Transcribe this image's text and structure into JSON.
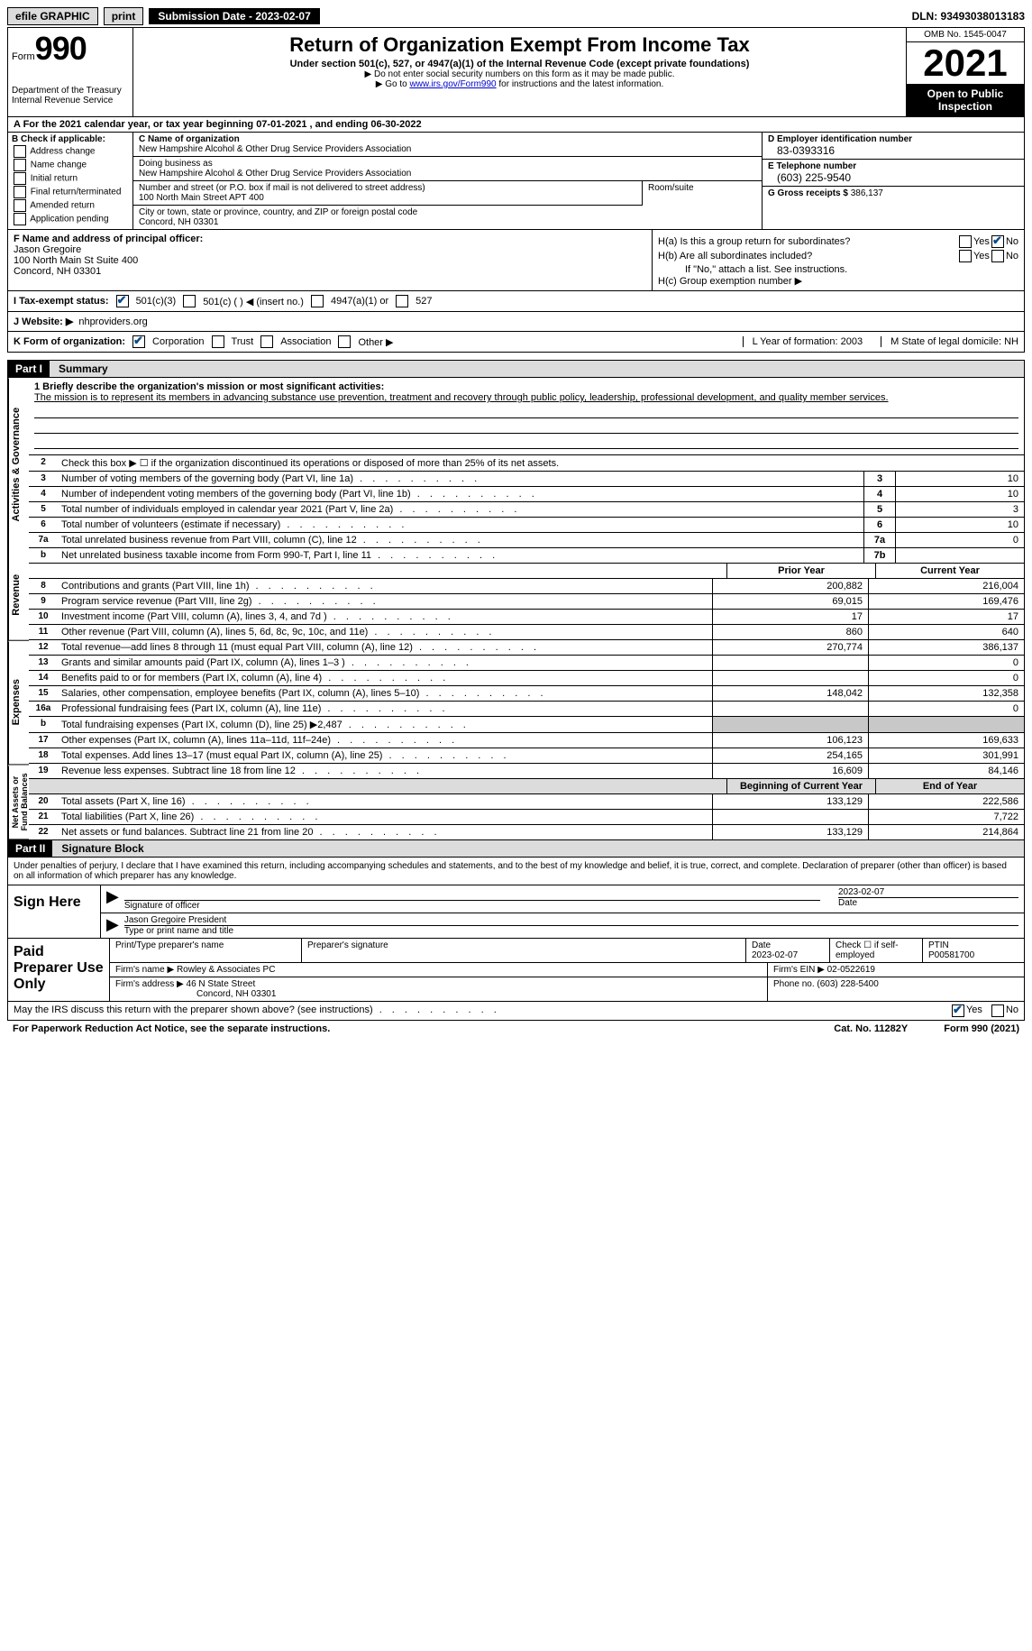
{
  "topbar": {
    "efile": "efile GRAPHIC",
    "print": "print",
    "submission": "Submission Date - 2023-02-07",
    "dln": "DLN: 93493038013183"
  },
  "header": {
    "form_label": "Form",
    "form_number": "990",
    "title": "Return of Organization Exempt From Income Tax",
    "subtitle": "Under section 501(c), 527, or 4947(a)(1) of the Internal Revenue Code (except private foundations)",
    "note1": "▶ Do not enter social security numbers on this form as it may be made public.",
    "note2_pre": "▶ Go to ",
    "note2_link": "www.irs.gov/Form990",
    "note2_post": " for instructions and the latest information.",
    "dept": "Department of the Treasury\nInternal Revenue Service",
    "omb": "OMB No. 1545-0047",
    "year": "2021",
    "open": "Open to Public Inspection"
  },
  "row_a": "A For the 2021 calendar year, or tax year beginning 07-01-2021    , and ending 06-30-2022",
  "section_b": {
    "label": "B Check if applicable:",
    "items": [
      "Address change",
      "Name change",
      "Initial return",
      "Final return/terminated",
      "Amended return",
      "Application pending"
    ]
  },
  "section_c": {
    "name_label": "C Name of organization",
    "name": "New Hampshire Alcohol & Other Drug Service Providers Association",
    "dba_label": "Doing business as",
    "dba": "New Hampshire Alcohol & Other Drug Service Providers Association",
    "street_label": "Number and street (or P.O. box if mail is not delivered to street address)",
    "street": "100 North Main Street APT 400",
    "room_label": "Room/suite",
    "city_label": "City or town, state or province, country, and ZIP or foreign postal code",
    "city": "Concord, NH  03301"
  },
  "section_d": {
    "ein_label": "D Employer identification number",
    "ein": "83-0393316",
    "phone_label": "E Telephone number",
    "phone": "(603) 225-9540",
    "gross_label": "G Gross receipts $",
    "gross": "386,137"
  },
  "section_f": {
    "label": "F  Name and address of principal officer:",
    "name": "Jason Gregoire",
    "addr1": "100 North Main St Suite 400",
    "addr2": "Concord, NH  03301"
  },
  "section_h": {
    "ha_label": "H(a)  Is this a group return for subordinates?",
    "hb_label": "H(b)  Are all subordinates included?",
    "hb_note": "If \"No,\" attach a list. See instructions.",
    "hc_label": "H(c)  Group exemption number ▶"
  },
  "row_i": {
    "label": "I   Tax-exempt status:",
    "opt1": "501(c)(3)",
    "opt2": "501(c) (  ) ◀ (insert no.)",
    "opt3": "4947(a)(1) or",
    "opt4": "527"
  },
  "row_j": {
    "label": "J   Website: ▶",
    "value": "nhproviders.org"
  },
  "row_k": {
    "label": "K Form of organization:",
    "opt1": "Corporation",
    "opt2": "Trust",
    "opt3": "Association",
    "opt4": "Other ▶",
    "year_label": "L Year of formation:",
    "year": "2003",
    "state_label": "M State of legal domicile:",
    "state": "NH"
  },
  "part1": {
    "header": "Part I",
    "title": "Summary",
    "mission_label": "1   Briefly describe the organization's mission or most significant activities:",
    "mission": "The mission is to represent its members in advancing substance use prevention, treatment and recovery through public policy, leadership, professional development, and quality member services.",
    "line2": "Check this box ▶ ☐  if the organization discontinued its operations or disposed of more than 25% of its net assets.",
    "vert_ag": "Activities & Governance",
    "vert_rev": "Revenue",
    "vert_exp": "Expenses",
    "vert_na": "Net Assets or Fund Balances",
    "lines_single": [
      {
        "n": "3",
        "label": "Number of voting members of the governing body (Part VI, line 1a)",
        "box": "3",
        "val": "10"
      },
      {
        "n": "4",
        "label": "Number of independent voting members of the governing body (Part VI, line 1b)",
        "box": "4",
        "val": "10"
      },
      {
        "n": "5",
        "label": "Total number of individuals employed in calendar year 2021 (Part V, line 2a)",
        "box": "5",
        "val": "3"
      },
      {
        "n": "6",
        "label": "Total number of volunteers (estimate if necessary)",
        "box": "6",
        "val": "10"
      },
      {
        "n": "7a",
        "label": "Total unrelated business revenue from Part VIII, column (C), line 12",
        "box": "7a",
        "val": "0"
      },
      {
        "n": "b",
        "label": "Net unrelated business taxable income from Form 990-T, Part I, line 11",
        "box": "7b",
        "val": ""
      }
    ],
    "prior_header": "Prior Year",
    "current_header": "Current Year",
    "lines_two": [
      {
        "n": "8",
        "label": "Contributions and grants (Part VIII, line 1h)",
        "py": "200,882",
        "cy": "216,004"
      },
      {
        "n": "9",
        "label": "Program service revenue (Part VIII, line 2g)",
        "py": "69,015",
        "cy": "169,476"
      },
      {
        "n": "10",
        "label": "Investment income (Part VIII, column (A), lines 3, 4, and 7d )",
        "py": "17",
        "cy": "17"
      },
      {
        "n": "11",
        "label": "Other revenue (Part VIII, column (A), lines 5, 6d, 8c, 9c, 10c, and 11e)",
        "py": "860",
        "cy": "640"
      },
      {
        "n": "12",
        "label": "Total revenue—add lines 8 through 11 (must equal Part VIII, column (A), line 12)",
        "py": "270,774",
        "cy": "386,137"
      },
      {
        "n": "13",
        "label": "Grants and similar amounts paid (Part IX, column (A), lines 1–3 )",
        "py": "",
        "cy": "0"
      },
      {
        "n": "14",
        "label": "Benefits paid to or for members (Part IX, column (A), line 4)",
        "py": "",
        "cy": "0"
      },
      {
        "n": "15",
        "label": "Salaries, other compensation, employee benefits (Part IX, column (A), lines 5–10)",
        "py": "148,042",
        "cy": "132,358"
      },
      {
        "n": "16a",
        "label": "Professional fundraising fees (Part IX, column (A), line 11e)",
        "py": "",
        "cy": "0"
      },
      {
        "n": "b",
        "label": "Total fundraising expenses (Part IX, column (D), line 25) ▶2,487",
        "py": "shaded",
        "cy": "shaded"
      },
      {
        "n": "17",
        "label": "Other expenses (Part IX, column (A), lines 11a–11d, 11f–24e)",
        "py": "106,123",
        "cy": "169,633"
      },
      {
        "n": "18",
        "label": "Total expenses. Add lines 13–17 (must equal Part IX, column (A), line 25)",
        "py": "254,165",
        "cy": "301,991"
      },
      {
        "n": "19",
        "label": "Revenue less expenses. Subtract line 18 from line 12",
        "py": "16,609",
        "cy": "84,146"
      }
    ],
    "begin_header": "Beginning of Current Year",
    "end_header": "End of Year",
    "lines_na": [
      {
        "n": "20",
        "label": "Total assets (Part X, line 16)",
        "py": "133,129",
        "cy": "222,586"
      },
      {
        "n": "21",
        "label": "Total liabilities (Part X, line 26)",
        "py": "",
        "cy": "7,722"
      },
      {
        "n": "22",
        "label": "Net assets or fund balances. Subtract line 21 from line 20",
        "py": "133,129",
        "cy": "214,864"
      }
    ]
  },
  "part2": {
    "header": "Part II",
    "title": "Signature Block",
    "declaration": "Under penalties of perjury, I declare that I have examined this return, including accompanying schedules and statements, and to the best of my knowledge and belief, it is true, correct, and complete. Declaration of preparer (other than officer) is based on all information of which preparer has any knowledge.",
    "sign_here": "Sign Here",
    "sig_officer": "Signature of officer",
    "sig_date": "2023-02-07",
    "sig_date_label": "Date",
    "sig_name": "Jason Gregoire President",
    "sig_name_label": "Type or print name and title",
    "paid_prep": "Paid Preparer Use Only",
    "prep_name_label": "Print/Type preparer's name",
    "prep_sig_label": "Preparer's signature",
    "prep_date_label": "Date",
    "prep_date": "2023-02-07",
    "prep_check_label": "Check ☐ if self-employed",
    "ptin_label": "PTIN",
    "ptin": "P00581700",
    "firm_name_label": "Firm's name    ▶",
    "firm_name": "Rowley & Associates PC",
    "firm_ein_label": "Firm's EIN ▶",
    "firm_ein": "02-0522619",
    "firm_addr_label": "Firm's address ▶",
    "firm_addr1": "46 N State Street",
    "firm_addr2": "Concord, NH  03301",
    "firm_phone_label": "Phone no.",
    "firm_phone": "(603) 228-5400",
    "discuss": "May the IRS discuss this return with the preparer shown above? (see instructions)",
    "yes": "Yes",
    "no": "No"
  },
  "footer": {
    "paperwork": "For Paperwork Reduction Act Notice, see the separate instructions.",
    "cat": "Cat. No. 11282Y",
    "form": "Form 990 (2021)"
  }
}
